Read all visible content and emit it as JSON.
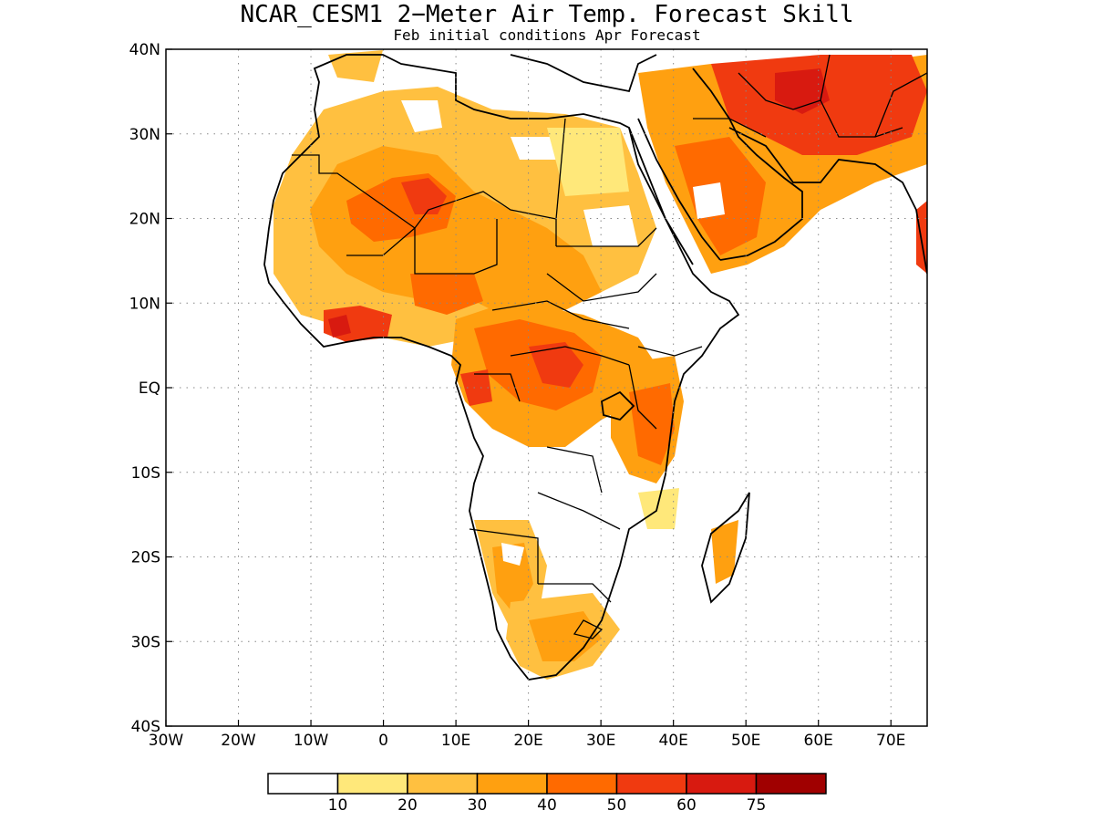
{
  "title": "NCAR_CESM1 2−Meter Air Temp. Forecast Skill",
  "subtitle": "Feb initial conditions  Apr Forecast",
  "axes": {
    "x_ticks": [
      "30W",
      "20W",
      "10W",
      "0",
      "10E",
      "20E",
      "30E",
      "40E",
      "50E",
      "60E",
      "70E"
    ],
    "y_ticks": [
      "40N",
      "30N",
      "20N",
      "10N",
      "EQ",
      "10S",
      "20S",
      "30S",
      "40S"
    ],
    "lon_range": [
      -30,
      75
    ],
    "lat_range": [
      -40,
      40
    ],
    "grid": "dotted"
  },
  "colorbar": {
    "labels": [
      "10",
      "20",
      "30",
      "40",
      "50",
      "60",
      "75"
    ],
    "colors": [
      "#ffffff",
      "#ffe87a",
      "#ffc040",
      "#ffa010",
      "#ff6a00",
      "#f03a10",
      "#d81a10",
      "#a00000"
    ]
  },
  "colors": {
    "land_outline": "#000000",
    "background": "#ffffff"
  }
}
